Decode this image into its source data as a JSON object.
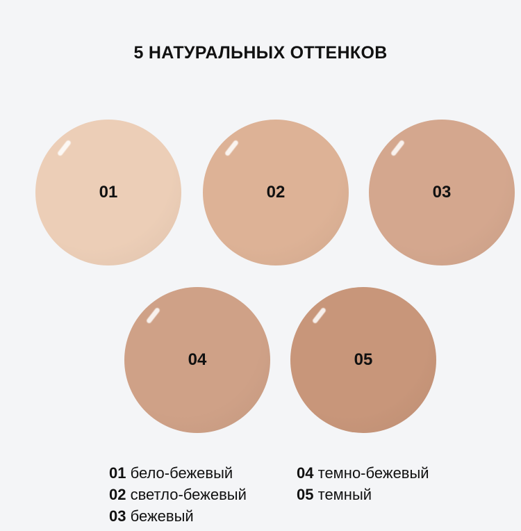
{
  "title": "5 НАТУРАЛЬНЫХ ОТТЕНКОВ",
  "shades": [
    {
      "code": "01",
      "name": "бело-бежевый",
      "color": "#ecceb7"
    },
    {
      "code": "02",
      "name": "светло-бежевый",
      "color": "#ddb296"
    },
    {
      "code": "03",
      "name": "бежевый",
      "color": "#d4a78e"
    },
    {
      "code": "04",
      "name": "темно-бежевый",
      "color": "#cfa187"
    },
    {
      "code": "05",
      "name": "темный",
      "color": "#c8967a"
    }
  ]
}
